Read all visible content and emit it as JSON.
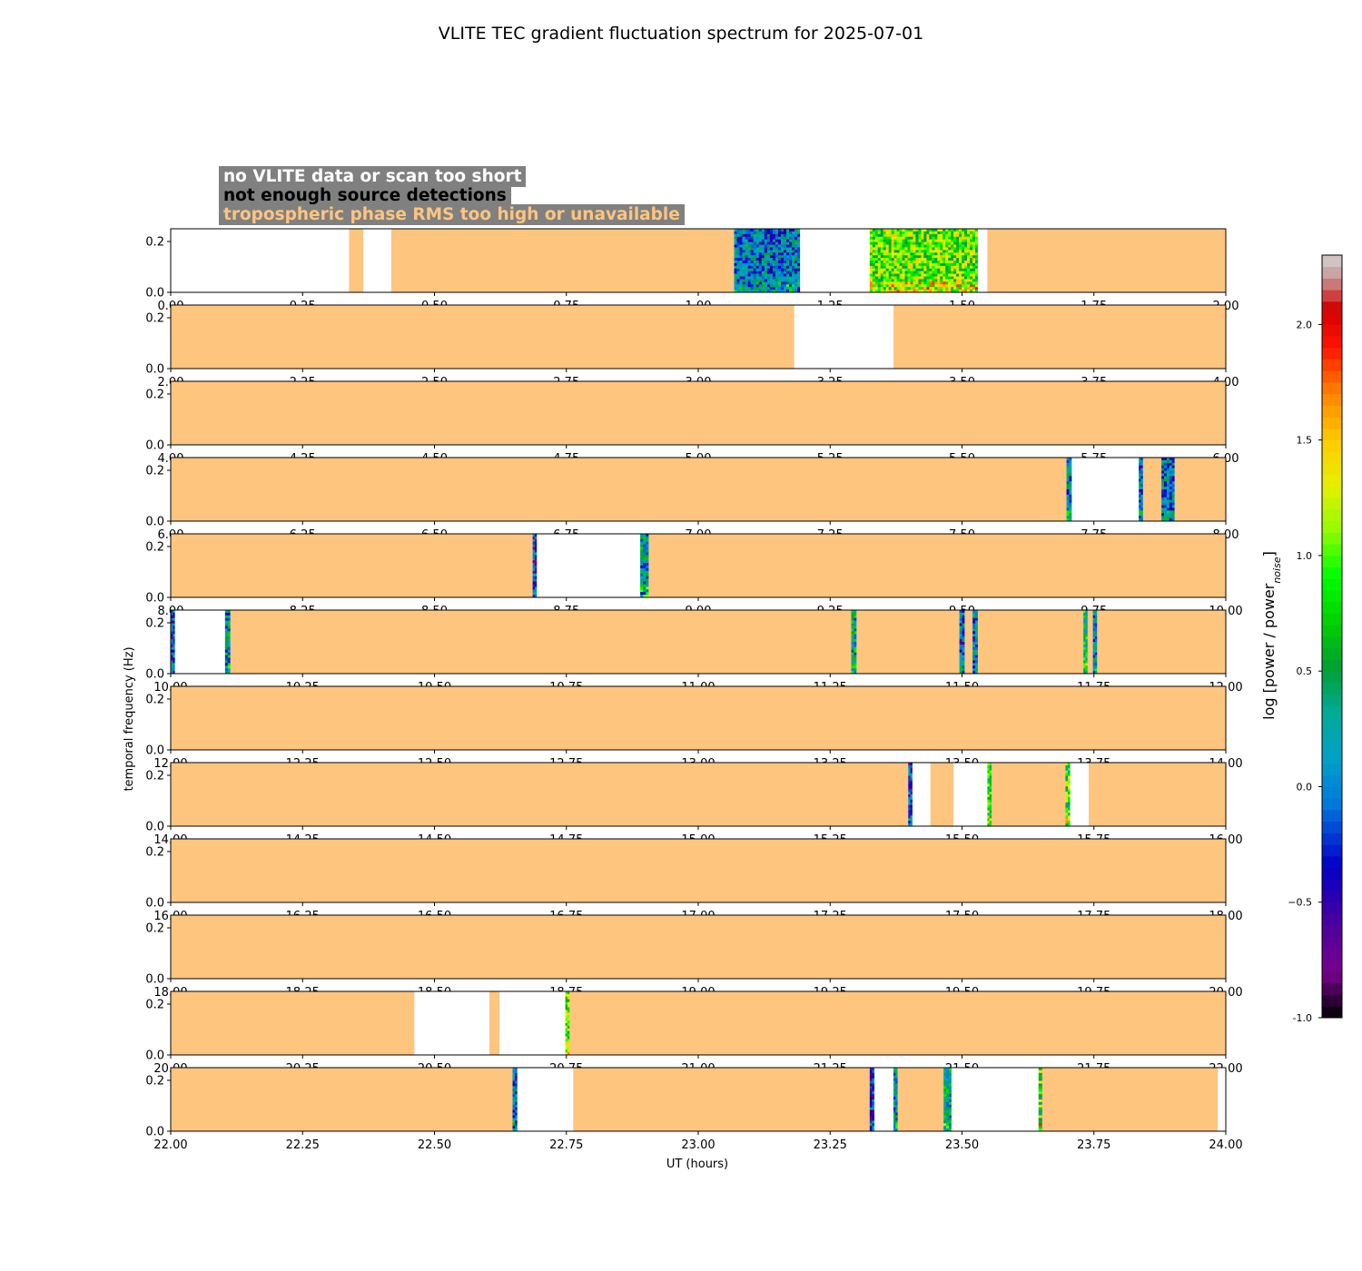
{
  "chart_data": {
    "type": "heatmap",
    "title": "VLITE TEC gradient fluctuation spectrum for 2025-07-01",
    "xlabel": "UT (hours)",
    "ylabel": "temporal frequency (Hz)",
    "ylim": [
      0,
      0.25
    ],
    "yticks": [
      "0.0",
      "0.2"
    ],
    "colorbar": {
      "label": "log [power / power",
      "label_sub": "noise",
      "label_close": "]",
      "range": [
        -1.0,
        2.3
      ],
      "ticks": [
        "-1.0",
        "−0.5",
        "0.0",
        "0.5",
        "1.0",
        "1.5",
        "2.0"
      ],
      "tick_values": [
        -1.0,
        -0.5,
        0.0,
        0.5,
        1.0,
        1.5,
        2.0
      ]
    },
    "legend": [
      {
        "label": "no VLITE data or scan too short",
        "color": "#ffffff"
      },
      {
        "label": "not enough source detections",
        "color": "#000000"
      },
      {
        "label": "tropospheric phase RMS too high or unavailable",
        "color": "#fec57f"
      }
    ],
    "status_colors": {
      "no_data": "#ffffff",
      "tropo": "#fec57f"
    },
    "panels": [
      {
        "start": 0,
        "end": 2,
        "xticks": [
          "0.00",
          "0.25",
          "0.50",
          "0.75",
          "1.00",
          "1.25",
          "1.50",
          "1.75",
          "2.00"
        ],
        "segments": [
          {
            "s": 0.0,
            "e": 0.338,
            "k": "no_data"
          },
          {
            "s": 0.338,
            "e": 0.365,
            "k": "tropo"
          },
          {
            "s": 0.365,
            "e": 0.418,
            "k": "no_data"
          },
          {
            "s": 0.418,
            "e": 1.068,
            "k": "tropo"
          },
          {
            "s": 1.068,
            "e": 1.193,
            "k": "spec",
            "level": 0.0
          },
          {
            "s": 1.193,
            "e": 1.325,
            "k": "no_data"
          },
          {
            "s": 1.325,
            "e": 1.53,
            "k": "spec",
            "level": 1.0
          },
          {
            "s": 1.53,
            "e": 1.548,
            "k": "no_data"
          },
          {
            "s": 1.548,
            "e": 2.0,
            "k": "tropo"
          }
        ]
      },
      {
        "start": 2,
        "end": 4,
        "xticks": [
          "2.00",
          "2.25",
          "2.50",
          "2.75",
          "3.00",
          "3.25",
          "3.50",
          "3.75",
          "4.00"
        ],
        "segments": [
          {
            "s": 2.0,
            "e": 3.182,
            "k": "tropo"
          },
          {
            "s": 3.182,
            "e": 3.37,
            "k": "no_data"
          },
          {
            "s": 3.37,
            "e": 4.0,
            "k": "tropo"
          }
        ]
      },
      {
        "start": 4,
        "end": 6,
        "xticks": [
          "4.00",
          "4.25",
          "4.50",
          "4.75",
          "5.00",
          "5.25",
          "5.50",
          "5.75",
          "6.00"
        ],
        "segments": [
          {
            "s": 4.0,
            "e": 6.0,
            "k": "tropo"
          }
        ]
      },
      {
        "start": 6,
        "end": 8,
        "xticks": [
          "6.00",
          "6.25",
          "6.50",
          "6.75",
          "7.00",
          "7.25",
          "7.50",
          "7.75",
          "8.00"
        ],
        "segments": [
          {
            "s": 6.0,
            "e": 7.698,
            "k": "tropo"
          },
          {
            "s": 7.698,
            "e": 7.708,
            "k": "spec",
            "level": 0.1
          },
          {
            "s": 7.708,
            "e": 7.835,
            "k": "no_data"
          },
          {
            "s": 7.835,
            "e": 7.843,
            "k": "spec",
            "level": 0.0
          },
          {
            "s": 7.843,
            "e": 7.878,
            "k": "tropo"
          },
          {
            "s": 7.878,
            "e": 7.903,
            "k": "spec",
            "level": 0.0
          },
          {
            "s": 7.903,
            "e": 8.0,
            "k": "tropo"
          }
        ]
      },
      {
        "start": 8,
        "end": 10,
        "xticks": [
          "8.00",
          "8.25",
          "8.50",
          "8.75",
          "9.00",
          "9.25",
          "9.50",
          "9.75",
          "10.00"
        ],
        "segments": [
          {
            "s": 8.0,
            "e": 8.686,
            "k": "tropo"
          },
          {
            "s": 8.686,
            "e": 8.694,
            "k": "spec",
            "level": -0.3
          },
          {
            "s": 8.694,
            "e": 8.89,
            "k": "no_data"
          },
          {
            "s": 8.89,
            "e": 8.906,
            "k": "spec",
            "level": 0.2
          },
          {
            "s": 8.906,
            "e": 10.0,
            "k": "tropo"
          }
        ]
      },
      {
        "start": 10,
        "end": 12,
        "xticks": [
          "10.00",
          "10.25",
          "10.50",
          "10.75",
          "11.00",
          "11.25",
          "11.50",
          "11.75",
          "12.00"
        ],
        "segments": [
          {
            "s": 10.0,
            "e": 10.008,
            "k": "spec",
            "level": -0.2
          },
          {
            "s": 10.008,
            "e": 10.103,
            "k": "no_data"
          },
          {
            "s": 10.103,
            "e": 10.113,
            "k": "spec",
            "level": 0.2
          },
          {
            "s": 10.113,
            "e": 11.29,
            "k": "tropo"
          },
          {
            "s": 11.29,
            "e": 11.3,
            "k": "spec",
            "level": 0.3
          },
          {
            "s": 11.3,
            "e": 11.495,
            "k": "tropo"
          },
          {
            "s": 11.495,
            "e": 11.505,
            "k": "spec",
            "level": -0.1
          },
          {
            "s": 11.505,
            "e": 11.52,
            "k": "tropo"
          },
          {
            "s": 11.52,
            "e": 11.53,
            "k": "spec",
            "level": -0.1
          },
          {
            "s": 11.53,
            "e": 11.73,
            "k": "tropo"
          },
          {
            "s": 11.73,
            "e": 11.738,
            "k": "spec",
            "level": 0.5
          },
          {
            "s": 11.738,
            "e": 11.748,
            "k": "tropo"
          },
          {
            "s": 11.748,
            "e": 11.756,
            "k": "spec",
            "level": 0.0
          },
          {
            "s": 11.756,
            "e": 12.0,
            "k": "tropo"
          }
        ]
      },
      {
        "start": 12,
        "end": 14,
        "xticks": [
          "12.00",
          "12.25",
          "12.50",
          "12.75",
          "13.00",
          "13.25",
          "13.50",
          "13.75",
          "14.00"
        ],
        "segments": [
          {
            "s": 12.0,
            "e": 14.0,
            "k": "tropo"
          }
        ]
      },
      {
        "start": 14,
        "end": 16,
        "xticks": [
          "14.00",
          "14.25",
          "14.50",
          "14.75",
          "15.00",
          "15.25",
          "15.50",
          "15.75",
          "16.00"
        ],
        "segments": [
          {
            "s": 14.0,
            "e": 15.398,
            "k": "tropo"
          },
          {
            "s": 15.398,
            "e": 15.406,
            "k": "spec",
            "level": -0.3
          },
          {
            "s": 15.406,
            "e": 15.44,
            "k": "no_data"
          },
          {
            "s": 15.44,
            "e": 15.484,
            "k": "tropo"
          },
          {
            "s": 15.484,
            "e": 15.548,
            "k": "no_data"
          },
          {
            "s": 15.548,
            "e": 15.556,
            "k": "spec",
            "level": 0.8
          },
          {
            "s": 15.556,
            "e": 15.696,
            "k": "tropo"
          },
          {
            "s": 15.696,
            "e": 15.705,
            "k": "spec",
            "level": 0.8
          },
          {
            "s": 15.705,
            "e": 15.74,
            "k": "no_data"
          },
          {
            "s": 15.74,
            "e": 16.0,
            "k": "tropo"
          }
        ]
      },
      {
        "start": 16,
        "end": 18,
        "xticks": [
          "16.00",
          "16.25",
          "16.50",
          "16.75",
          "17.00",
          "17.25",
          "17.50",
          "17.75",
          "18.00"
        ],
        "segments": [
          {
            "s": 16.0,
            "e": 18.0,
            "k": "tropo"
          }
        ]
      },
      {
        "start": 18,
        "end": 20,
        "xticks": [
          "18.00",
          "18.25",
          "18.50",
          "18.75",
          "19.00",
          "19.25",
          "19.50",
          "19.75",
          "20.00"
        ],
        "segments": [
          {
            "s": 18.0,
            "e": 20.0,
            "k": "tropo"
          }
        ]
      },
      {
        "start": 20,
        "end": 22,
        "xticks": [
          "20.00",
          "20.25",
          "20.50",
          "20.75",
          "21.00",
          "21.25",
          "21.50",
          "21.75",
          "22.00"
        ],
        "segments": [
          {
            "s": 20.0,
            "e": 20.462,
            "k": "tropo"
          },
          {
            "s": 20.462,
            "e": 20.604,
            "k": "no_data"
          },
          {
            "s": 20.604,
            "e": 20.623,
            "k": "tropo"
          },
          {
            "s": 20.623,
            "e": 20.748,
            "k": "no_data"
          },
          {
            "s": 20.748,
            "e": 20.756,
            "k": "spec",
            "level": 0.9
          },
          {
            "s": 20.756,
            "e": 22.0,
            "k": "tropo"
          }
        ]
      },
      {
        "start": 22,
        "end": 24,
        "xticks": [
          "22.00",
          "22.25",
          "22.50",
          "22.75",
          "23.00",
          "23.25",
          "23.50",
          "23.75",
          "24.00"
        ],
        "segments": [
          {
            "s": 22.0,
            "e": 22.648,
            "k": "tropo"
          },
          {
            "s": 22.648,
            "e": 22.657,
            "k": "spec",
            "level": 0.0
          },
          {
            "s": 22.657,
            "e": 22.763,
            "k": "no_data"
          },
          {
            "s": 22.763,
            "e": 23.325,
            "k": "tropo"
          },
          {
            "s": 23.325,
            "e": 23.334,
            "k": "spec",
            "level": -0.4
          },
          {
            "s": 23.334,
            "e": 23.37,
            "k": "no_data"
          },
          {
            "s": 23.37,
            "e": 23.378,
            "k": "spec",
            "level": 0.2
          },
          {
            "s": 23.378,
            "e": 23.465,
            "k": "tropo"
          },
          {
            "s": 23.465,
            "e": 23.48,
            "k": "spec",
            "level": 0.3
          },
          {
            "s": 23.48,
            "e": 23.645,
            "k": "no_data"
          },
          {
            "s": 23.645,
            "e": 23.652,
            "k": "spec",
            "level": 0.9
          },
          {
            "s": 23.652,
            "e": 23.985,
            "k": "tropo"
          },
          {
            "s": 23.985,
            "e": 24.0,
            "k": "no_data"
          }
        ]
      }
    ]
  }
}
